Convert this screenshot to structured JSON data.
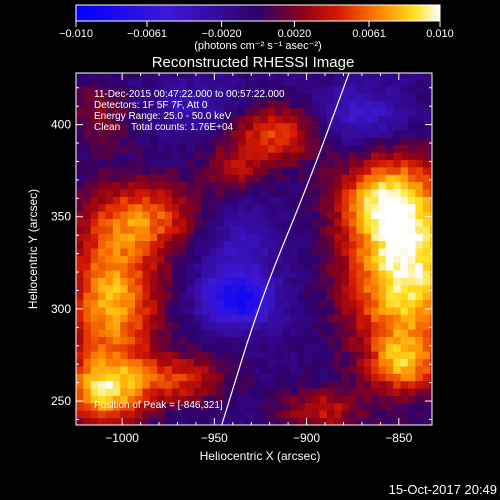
{
  "chart_data": {
    "type": "heatmap",
    "title": "Reconstructed RHESSI Image",
    "xlabel": "Heliocentric X (arcsec)",
    "ylabel": "Heliocentric Y (arcsec)",
    "xlim": [
      -1025,
      -832
    ],
    "ylim": [
      237,
      428
    ],
    "x_ticks": [
      -1000,
      -950,
      -900,
      -850
    ],
    "x_tick_labels": [
      "−1000",
      "−950",
      "−900",
      "−850"
    ],
    "y_ticks": [
      250,
      300,
      350,
      400
    ],
    "y_tick_labels": [
      "250",
      "300",
      "350",
      "400"
    ],
    "colorbar": {
      "range": [
        -0.01,
        0.01
      ],
      "ticks": [
        -0.01,
        -0.0061,
        -0.002,
        0.002,
        0.0061,
        0.01
      ],
      "tick_labels": [
        "−0.010",
        "−0.0061",
        "−0.0020",
        "0.0020",
        "0.0061",
        "0.010"
      ],
      "units_label": "(photons cm⁻² s⁻¹ asec⁻²)"
    },
    "annotations": [
      "11-Dec-2015 00:47:22.000 to 00:57:22.000",
      "Detectors: 1F 5F 7F, Att 0",
      "Energy Range: 25.0 - 50.0 keV",
      "Clean    Total counts: 1.76E+04"
    ],
    "peak_label": "Position of Peak = [-846,321]",
    "timestamp": "15-Oct-2017 20:49",
    "sources": [
      {
        "x": -846,
        "y": 321,
        "amp": 0.0105,
        "sx": 23,
        "sy": 36
      },
      {
        "x": -858,
        "y": 360,
        "amp": 0.006,
        "sx": 18,
        "sy": 16
      },
      {
        "x": -1005,
        "y": 305,
        "amp": 0.0085,
        "sx": 18,
        "sy": 28
      },
      {
        "x": -987,
        "y": 350,
        "amp": 0.006,
        "sx": 22,
        "sy": 14
      },
      {
        "x": -918,
        "y": 395,
        "amp": 0.006,
        "sx": 18,
        "sy": 12
      },
      {
        "x": -940,
        "y": 375,
        "amp": 0.0035,
        "sx": 12,
        "sy": 8
      },
      {
        "x": -1010,
        "y": 255,
        "amp": 0.008,
        "sx": 16,
        "sy": 13
      },
      {
        "x": -968,
        "y": 262,
        "amp": 0.005,
        "sx": 18,
        "sy": 10
      },
      {
        "x": -848,
        "y": 270,
        "amp": 0.0055,
        "sx": 12,
        "sy": 10
      },
      {
        "x": -893,
        "y": 245,
        "amp": 0.0045,
        "sx": 16,
        "sy": 8
      },
      {
        "x": -1010,
        "y": 405,
        "amp": 0.003,
        "sx": 14,
        "sy": 14
      },
      {
        "x": -937,
        "y": 305,
        "amp": -0.0075,
        "sx": 14,
        "sy": 10
      },
      {
        "x": -937,
        "y": 336,
        "amp": -0.003,
        "sx": 16,
        "sy": 14
      },
      {
        "x": -870,
        "y": 405,
        "amp": -0.004,
        "sx": 18,
        "sy": 12
      },
      {
        "x": -960,
        "y": 410,
        "amp": -0.0025,
        "sx": 22,
        "sy": 10
      }
    ],
    "limb_curve": [
      [
        -877,
        428
      ],
      [
        -899,
        368
      ],
      [
        -925,
        305
      ],
      [
        -946,
        237
      ]
    ],
    "peak_position": [
      -846,
      321
    ]
  }
}
